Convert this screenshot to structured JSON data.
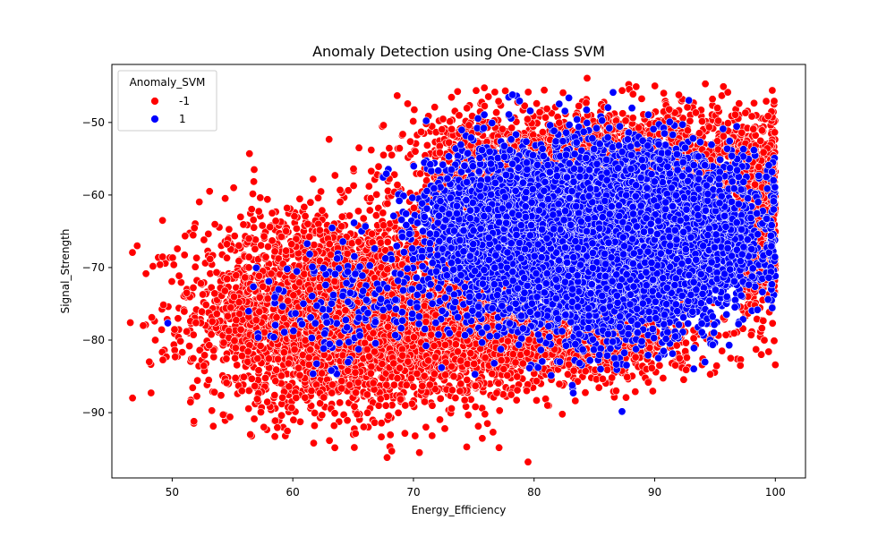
{
  "chart_data": {
    "type": "scatter",
    "title": "Anomaly Detection using One-Class SVM",
    "xlabel": "Energy_Efficiency",
    "ylabel": "Signal_Strength",
    "xlim": [
      45,
      102.5
    ],
    "ylim": [
      -99,
      -42
    ],
    "xticks": [
      50,
      60,
      70,
      80,
      90,
      100
    ],
    "yticks": [
      -90,
      -80,
      -70,
      -60,
      -50
    ],
    "grid": false,
    "legend": {
      "title": "Anomaly_SVM",
      "placement": "top-left",
      "entries": [
        {
          "label": "-1",
          "color": "#ff0000"
        },
        {
          "label": "1",
          "color": "#0000ff"
        }
      ]
    },
    "series": [
      {
        "name": "-1",
        "color": "#ff0000",
        "clusters": [
          {
            "x_mean": 63,
            "x_sd": 5.5,
            "y_mean": -76,
            "y_sd": 6.5,
            "count": 3200
          },
          {
            "x_mean": 73,
            "x_sd": 4.0,
            "y_mean": -79,
            "y_sd": 4.5,
            "count": 1100
          },
          {
            "x_mean": 87,
            "x_sd": 7.0,
            "y_mean": -56,
            "y_sd": 4.0,
            "count": 2200
          },
          {
            "x_mean": 82,
            "x_sd": 6.0,
            "y_mean": -80,
            "y_sd": 3.0,
            "count": 1100
          },
          {
            "x_mean": 98.5,
            "x_sd": 1.2,
            "y_mean": -64,
            "y_sd": 6.0,
            "count": 600
          },
          {
            "x_mean": 76,
            "x_sd": 3.0,
            "y_mean": -58,
            "y_sd": 5.0,
            "count": 500
          }
        ],
        "points": [
          [
            47.1,
            -67
          ],
          [
            48.1,
            -83
          ],
          [
            47.6,
            -78
          ],
          [
            49.2,
            -63.5
          ],
          [
            48.6,
            -80
          ],
          [
            51.2,
            -73.5
          ],
          [
            51.8,
            -91.2
          ],
          [
            53.1,
            -59.5
          ],
          [
            55.1,
            -59
          ],
          [
            56.4,
            -54.3
          ],
          [
            56.8,
            -56.5
          ],
          [
            57.6,
            -92
          ],
          [
            61.8,
            -91.8
          ],
          [
            65.1,
            -94.8
          ],
          [
            66.5,
            -53.8
          ],
          [
            68.2,
            -95.3
          ],
          [
            68.2,
            -54.5
          ],
          [
            72.6,
            -92.2
          ],
          [
            76.6,
            -92.7
          ],
          [
            79.5,
            -96.8
          ],
          [
            75.2,
            -45.6
          ],
          [
            84.4,
            -43.9
          ],
          [
            82.4,
            -45.9
          ],
          [
            87.3,
            -45.6
          ],
          [
            88.2,
            -46.1
          ],
          [
            92.0,
            -46.2
          ],
          [
            95.2,
            -48.0
          ],
          [
            91.2,
            -48.2
          ],
          [
            96.0,
            -52.8
          ],
          [
            98.9,
            -51.1
          ],
          [
            99.3,
            -67.6
          ],
          [
            100.0,
            -83.4
          ],
          [
            99.9,
            -80.1
          ],
          [
            96.3,
            -82.5
          ],
          [
            97.1,
            -83.5
          ],
          [
            98.0,
            -79.3
          ],
          [
            95.7,
            -76.9
          ],
          [
            86.8,
            -87.0
          ],
          [
            90.4,
            -83.5
          ],
          [
            92.6,
            -84.1
          ]
        ]
      },
      {
        "name": "1",
        "color": "#0000ff",
        "clusters": [
          {
            "x_mean": 85,
            "x_sd": 5.5,
            "y_mean": -66,
            "y_sd": 6.0,
            "count": 6500
          },
          {
            "x_mean": 92,
            "x_sd": 3.5,
            "y_mean": -66,
            "y_sd": 5.0,
            "count": 1500
          },
          {
            "x_mean": 76,
            "x_sd": 3.0,
            "y_mean": -64,
            "y_sd": 5.0,
            "count": 900
          },
          {
            "x_mean": 65,
            "x_sd": 4.0,
            "y_mean": -75,
            "y_sd": 4.0,
            "count": 180
          }
        ],
        "points": []
      }
    ]
  }
}
